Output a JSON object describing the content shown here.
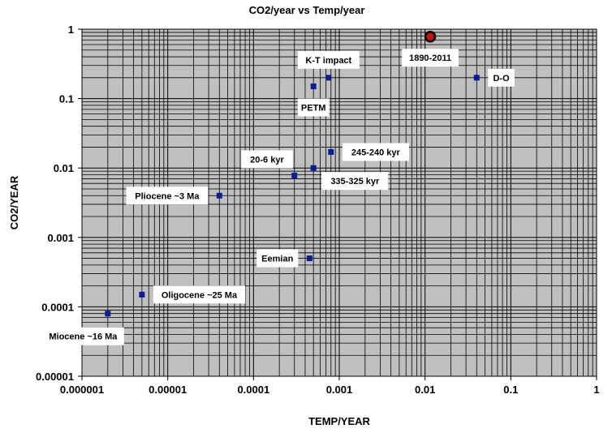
{
  "chart_data": {
    "type": "scatter",
    "title": "CO2/year vs Temp/year",
    "xlabel": "TEMP/YEAR",
    "ylabel": "CO2/YEAR",
    "xscale": "log",
    "yscale": "log",
    "xlim": [
      1e-06,
      1
    ],
    "ylim": [
      1e-05,
      1
    ],
    "xticks": [
      "0.000001",
      "0.00001",
      "0.0001",
      "0.001",
      "0.01",
      "0.1",
      "1"
    ],
    "yticks": [
      "0.00001",
      "0.0001",
      "0.001",
      "0.01",
      "0.1",
      "1"
    ],
    "grid": true,
    "colors": {
      "plot_bg": "#c0c0c0",
      "marker": "#0a1f8c",
      "highlight": "#c0150f"
    },
    "points": [
      {
        "label": "Miocene ~16 Ma",
        "x": 2e-06,
        "y": 8e-05,
        "label_pos": "below-left"
      },
      {
        "label": "Oligocene ~25 Ma",
        "x": 5e-06,
        "y": 0.00015,
        "label_pos": "right"
      },
      {
        "label": "Pliocene ~3 Ma",
        "x": 4e-05,
        "y": 0.004,
        "label_pos": "left"
      },
      {
        "label": "20-6 kyr",
        "x": 0.0003,
        "y": 0.0078,
        "label_pos": "above-left"
      },
      {
        "label": "335-325 kyr",
        "x": 0.0005,
        "y": 0.01,
        "label_pos": "below-right"
      },
      {
        "label": "245-240 kyr",
        "x": 0.0008,
        "y": 0.017,
        "label_pos": "right"
      },
      {
        "label": "Eemian",
        "x": 0.00045,
        "y": 0.0005,
        "label_pos": "left"
      },
      {
        "label": "PETM",
        "x": 0.0005,
        "y": 0.15,
        "label_pos": "below"
      },
      {
        "label": "K-T impact",
        "x": 0.00075,
        "y": 0.2,
        "label_pos": "above"
      },
      {
        "label": "D-O",
        "x": 0.04,
        "y": 0.2,
        "label_pos": "right"
      },
      {
        "label": "1890-2011",
        "x": 0.0115,
        "y": 0.78,
        "label_pos": "below",
        "highlight": true
      }
    ]
  }
}
